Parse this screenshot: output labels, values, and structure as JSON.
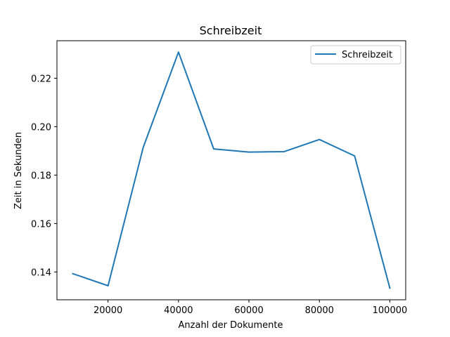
{
  "chart_data": {
    "type": "line",
    "title": "Schreibzeit",
    "xlabel": "Anzahl der Dokumente",
    "ylabel": "Zeit in Sekunden",
    "x": [
      10000,
      20000,
      30000,
      40000,
      50000,
      60000,
      70000,
      80000,
      90000,
      100000
    ],
    "series": [
      {
        "name": "Schreibzeit",
        "color": "#1f77b4",
        "values": [
          0.1393,
          0.1343,
          0.1915,
          0.2308,
          0.1908,
          0.1895,
          0.1897,
          0.1947,
          0.1879,
          0.1333
        ]
      }
    ],
    "xlim": [
      5500,
      104500
    ],
    "ylim": [
      0.1285,
      0.2355
    ],
    "xticks": [
      20000,
      40000,
      60000,
      80000,
      100000
    ],
    "xtick_labels": [
      "20000",
      "40000",
      "60000",
      "80000",
      "100000"
    ],
    "yticks": [
      0.14,
      0.16,
      0.18,
      0.2,
      0.22
    ],
    "ytick_labels": [
      "0.14",
      "0.16",
      "0.18",
      "0.20",
      "0.22"
    ],
    "grid": false,
    "legend": "top-right"
  }
}
